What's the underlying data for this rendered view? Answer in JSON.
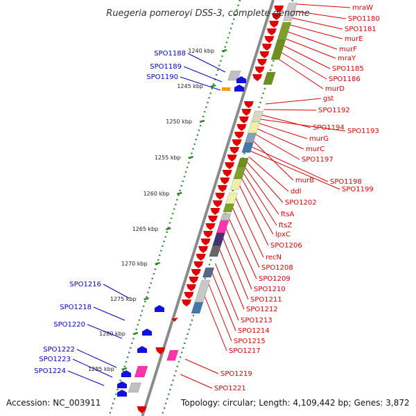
{
  "title": "Ruegeria pomeroyi DSS-3, complete genome",
  "accession": "Accession: NC_003911",
  "summary": "Topology: circular; Length: 4,109,442 bp; Genes: 3,872",
  "colors": {
    "backbone": "#8a8a8a",
    "ticks": "#2d8a2d",
    "forward_label": "#0000cc",
    "reverse_label": "#e00000",
    "forward_gene": "#1010e0",
    "reverse_gene": "#e00000"
  },
  "kbp_markers": [
    "1240 kbp",
    "1245 kbp",
    "1250 kbp",
    "1255 kbp",
    "1260 kbp",
    "1265 kbp",
    "1270 kbp",
    "1275 kbp",
    "1280 kbp",
    "1285 kbp"
  ],
  "reverse_labels": [
    "mraW",
    "SPO1180",
    "SPO1181",
    "murE",
    "murF",
    "mraY",
    "SPO1185",
    "SPO1186",
    "murD",
    "gst",
    "SPO1192",
    "SPO1194",
    "SPO1193",
    "murG",
    "murC",
    "SPO1197",
    "murB",
    "SPO1198",
    "SPO1199",
    "ddl",
    "SPO1202",
    "ftsA",
    "ftsZ",
    "lpxC",
    "SPO1206",
    "recN",
    "SPO1208",
    "SPO1209",
    "SPO1210",
    "SPO1211",
    "SPO1212",
    "SPO1213",
    "SPO1214",
    "SPO1215",
    "SPO1217",
    "SPO1219",
    "SPO1221"
  ],
  "forward_labels": [
    "SPO1188",
    "SPO1189",
    "SPO1190",
    "SPO1216",
    "SPO1218",
    "SPO1220",
    "SPO1222",
    "SPO1223",
    "SPO1224"
  ]
}
